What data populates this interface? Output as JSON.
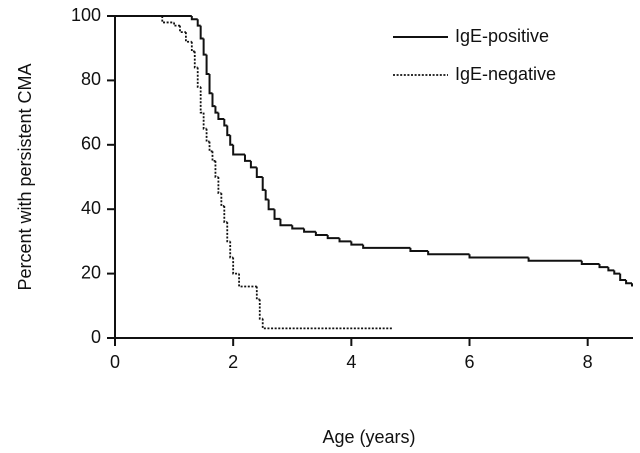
{
  "chart_data": {
    "type": "step",
    "x_label": "Age (years)",
    "y_label": "Percent with persistent CMA",
    "xlim": [
      0,
      8.75
    ],
    "xticks": [
      0,
      2,
      4,
      6,
      8
    ],
    "ylim": [
      0,
      100
    ],
    "yticks": [
      0,
      20,
      40,
      60,
      80,
      100
    ],
    "legend": "top-right",
    "series": [
      {
        "name": "IgE-positive",
        "color": "#111111",
        "line_style": "solid",
        "x": [
          0,
          1.3,
          1.4,
          1.45,
          1.5,
          1.55,
          1.6,
          1.65,
          1.7,
          1.75,
          1.85,
          1.9,
          1.95,
          2.0,
          2.2,
          2.3,
          2.4,
          2.5,
          2.55,
          2.6,
          2.7,
          2.8,
          3.0,
          3.2,
          3.4,
          3.6,
          3.8,
          4.0,
          4.2,
          5.0,
          5.3,
          6.0,
          7.0,
          7.9,
          8.2,
          8.35,
          8.45,
          8.55,
          8.65,
          8.75
        ],
        "values": [
          100,
          99,
          97,
          93,
          88,
          82,
          76,
          72,
          70,
          68,
          66,
          63,
          60,
          57,
          55,
          53,
          50,
          46,
          43,
          40,
          37,
          35,
          34,
          33,
          32,
          31,
          30,
          29,
          28,
          27,
          26,
          25,
          24,
          23,
          22,
          21,
          20,
          18,
          17,
          16
        ]
      },
      {
        "name": "IgE-negative",
        "color": "#111111",
        "line_style": "dotted",
        "x": [
          0,
          0.8,
          1.0,
          1.1,
          1.2,
          1.3,
          1.35,
          1.4,
          1.45,
          1.5,
          1.55,
          1.6,
          1.65,
          1.7,
          1.75,
          1.8,
          1.85,
          1.9,
          1.95,
          2.0,
          2.1,
          2.4,
          2.45,
          2.5,
          4.7
        ],
        "values": [
          100,
          98,
          97,
          95,
          92,
          89,
          84,
          78,
          70,
          65,
          61,
          58,
          55,
          50,
          45,
          41,
          36,
          30,
          25,
          20,
          16,
          12,
          6,
          3,
          3
        ]
      }
    ]
  }
}
